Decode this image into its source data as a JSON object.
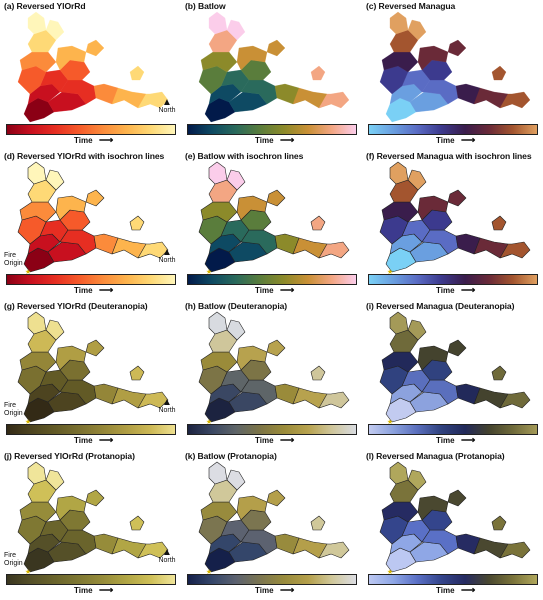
{
  "panels": [
    {
      "title": "(a) Reversed YlOrRd",
      "scheme": "ylorrd",
      "iso": false,
      "north": true,
      "origin": false
    },
    {
      "title": "(b) Batlow",
      "scheme": "batlow",
      "iso": false,
      "north": false,
      "origin": false
    },
    {
      "title": "(c) Reversed Managua",
      "scheme": "managua",
      "iso": false,
      "north": false,
      "origin": false
    },
    {
      "title": "(d) Reversed YlOrRd with isochron lines",
      "scheme": "ylorrd",
      "iso": true,
      "north": true,
      "origin": true
    },
    {
      "title": "(e) Batlow with isochron lines",
      "scheme": "batlow",
      "iso": true,
      "north": false,
      "origin": false
    },
    {
      "title": "(f) Reversed Managua with isochron lines",
      "scheme": "managua",
      "iso": true,
      "north": false,
      "origin": false
    },
    {
      "title": "(g) Reversed YlOrRd (Deuteranopia)",
      "scheme": "ylorrd_d",
      "iso": true,
      "north": true,
      "origin": true
    },
    {
      "title": "(h) Batlow (Deuteranopia)",
      "scheme": "batlow_d",
      "iso": true,
      "north": false,
      "origin": false
    },
    {
      "title": "(i) Reversed Managua (Deuteranopia)",
      "scheme": "managua_d",
      "iso": true,
      "north": false,
      "origin": false
    },
    {
      "title": "(j) Reversed YlOrRd (Protanopia)",
      "scheme": "ylorrd_p",
      "iso": true,
      "north": true,
      "origin": true
    },
    {
      "title": "(k) Batlow (Protanopia)",
      "scheme": "batlow_p",
      "iso": true,
      "north": false,
      "origin": false
    },
    {
      "title": "(l) Reversed Managua (Protanopia)",
      "scheme": "managua_p",
      "iso": true,
      "north": false,
      "origin": false
    }
  ],
  "time_label": "Time",
  "north_label": "North",
  "origin_label": "Fire Origin",
  "colormaps": {
    "ylorrd": [
      "#8b0015",
      "#c8101f",
      "#e62e22",
      "#f65a2a",
      "#fb8b3b",
      "#fdb44d",
      "#fed976",
      "#fff6ba"
    ],
    "batlow": [
      "#021a4a",
      "#0e4a63",
      "#2a6a5c",
      "#5a7d3c",
      "#8c8a2a",
      "#c99036",
      "#f3a683",
      "#fbcdea"
    ],
    "managua": [
      "#7ad0f5",
      "#6a9fe0",
      "#5a6cc4",
      "#3c3a8e",
      "#3a1d4c",
      "#6a2a38",
      "#a3552f",
      "#e0a060"
    ],
    "ylorrd_d": [
      "#332a16",
      "#4d4420",
      "#625a26",
      "#7a7030",
      "#948638",
      "#b09e44",
      "#cdb956",
      "#eee090"
    ],
    "batlow_d": [
      "#1c2340",
      "#3a4763",
      "#5e6568",
      "#7c7446",
      "#9a8b3a",
      "#b7a24e",
      "#cfc69b",
      "#d8dbe0"
    ],
    "managua_d": [
      "#c2cbf0",
      "#8ca2de",
      "#5a6fbd",
      "#30427f",
      "#22295a",
      "#44432e",
      "#6f6a3a",
      "#a49a58"
    ],
    "ylorrd_p": [
      "#3a3620",
      "#555028",
      "#6a642c",
      "#7f7833",
      "#968c3a",
      "#b1a645",
      "#cfc058",
      "#f0e59a"
    ],
    "batlow_p": [
      "#15204a",
      "#34466a",
      "#5c6270",
      "#7b7550",
      "#988b3d",
      "#b49f4a",
      "#d0c89a",
      "#dcdde3"
    ],
    "managua_p": [
      "#bcc8f2",
      "#8fa7e6",
      "#5a70c6",
      "#34458c",
      "#262b62",
      "#4a4830",
      "#7a733a",
      "#b0a75c"
    ]
  }
}
